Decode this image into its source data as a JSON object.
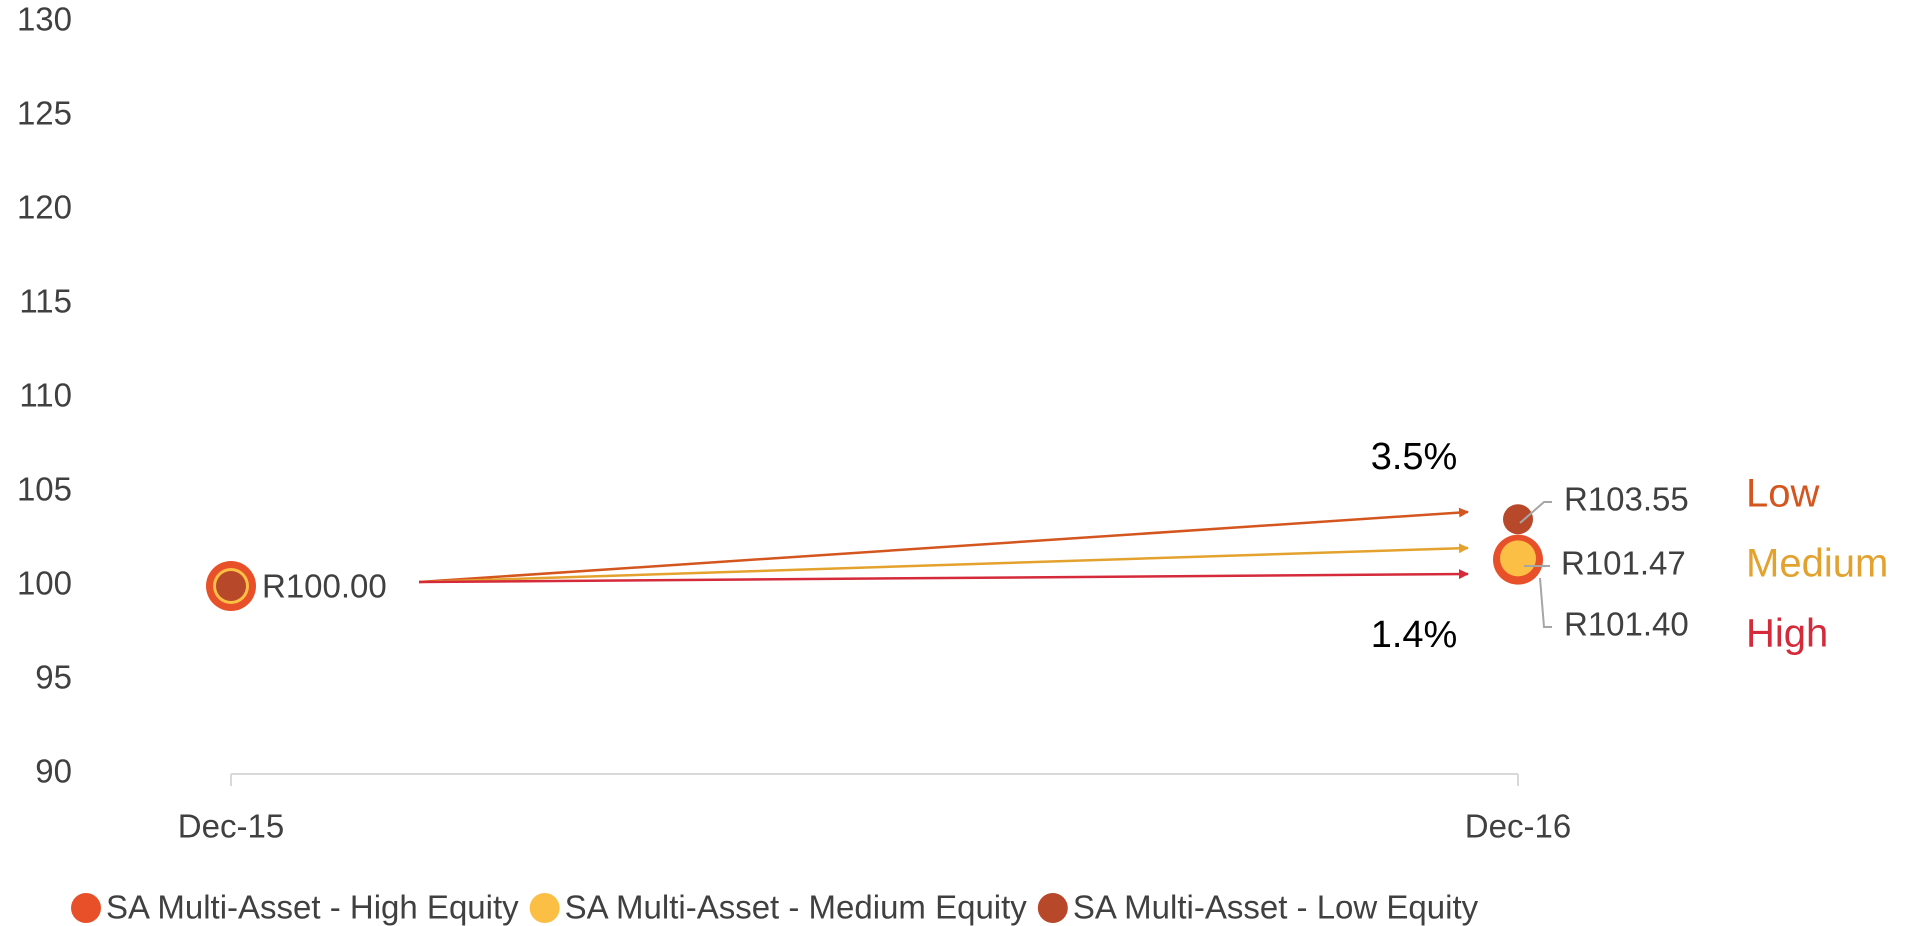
{
  "chart_data": {
    "type": "scatter",
    "categories": [
      "Dec-15",
      "Dec-16"
    ],
    "series": [
      {
        "name": "SA Multi-Asset - High Equity",
        "color": "#e8502a",
        "values": [
          100,
          101.4
        ],
        "value_labels": [
          null,
          "R101.40"
        ]
      },
      {
        "name": "SA Multi-Asset - Medium Equity",
        "color": "#fbbf45",
        "values": [
          100,
          101.47
        ],
        "value_labels": [
          null,
          "R101.47"
        ]
      },
      {
        "name": "SA Multi-Asset - Low Equity",
        "color": "#b8482a",
        "values": [
          100,
          103.55
        ],
        "value_labels": [
          "R100.00",
          "R103.55"
        ]
      }
    ],
    "ylim": [
      90,
      130
    ],
    "yticks": [
      90,
      95,
      100,
      105,
      110,
      115,
      120,
      125,
      130
    ],
    "grid": false,
    "legend": "bottom",
    "annotations": [
      {
        "text": "3.5%",
        "color": "#000000"
      },
      {
        "text": "1.4%",
        "color": "#000000"
      },
      {
        "text": "Low",
        "color": "#d4561e"
      },
      {
        "text": "Medium",
        "color": "#e3a22e"
      },
      {
        "text": "High",
        "color": "#d42a3a"
      }
    ]
  }
}
